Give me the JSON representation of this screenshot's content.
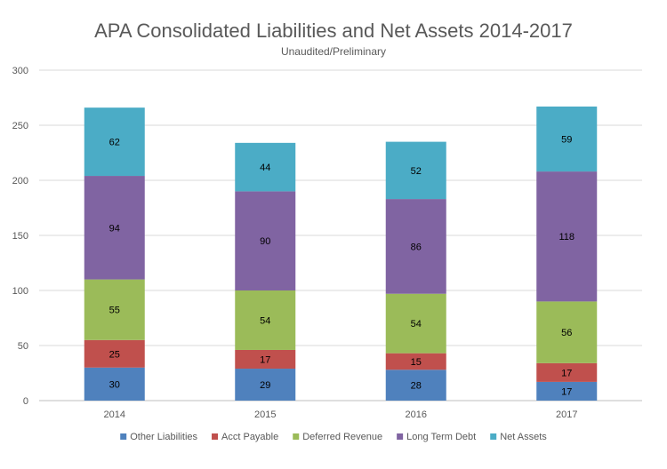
{
  "chart_data": {
    "type": "bar",
    "stacked": true,
    "title": "APA Consolidated Liabilities and Net Assets 2014-2017",
    "subtitle": "Unaudited/Preliminary",
    "xlabel": "",
    "ylabel": "",
    "ylim": [
      0,
      300
    ],
    "yticks": [
      0,
      50,
      100,
      150,
      200,
      250,
      300
    ],
    "grid": true,
    "legend_position": "bottom",
    "categories": [
      "2014",
      "2015",
      "2016",
      "2017"
    ],
    "series": [
      {
        "name": "Other Liabilities",
        "color": "#4f81bd",
        "values": [
          30,
          29,
          28,
          17
        ]
      },
      {
        "name": "Acct Payable",
        "color": "#c0504d",
        "values": [
          25,
          17,
          15,
          17
        ]
      },
      {
        "name": "Deferred Revenue",
        "color": "#9bbb59",
        "values": [
          55,
          54,
          54,
          56
        ]
      },
      {
        "name": "Long Term Debt",
        "color": "#8064a2",
        "values": [
          94,
          90,
          86,
          118
        ]
      },
      {
        "name": "Net Assets",
        "color": "#4bacc6",
        "values": [
          62,
          44,
          52,
          59
        ]
      }
    ]
  }
}
